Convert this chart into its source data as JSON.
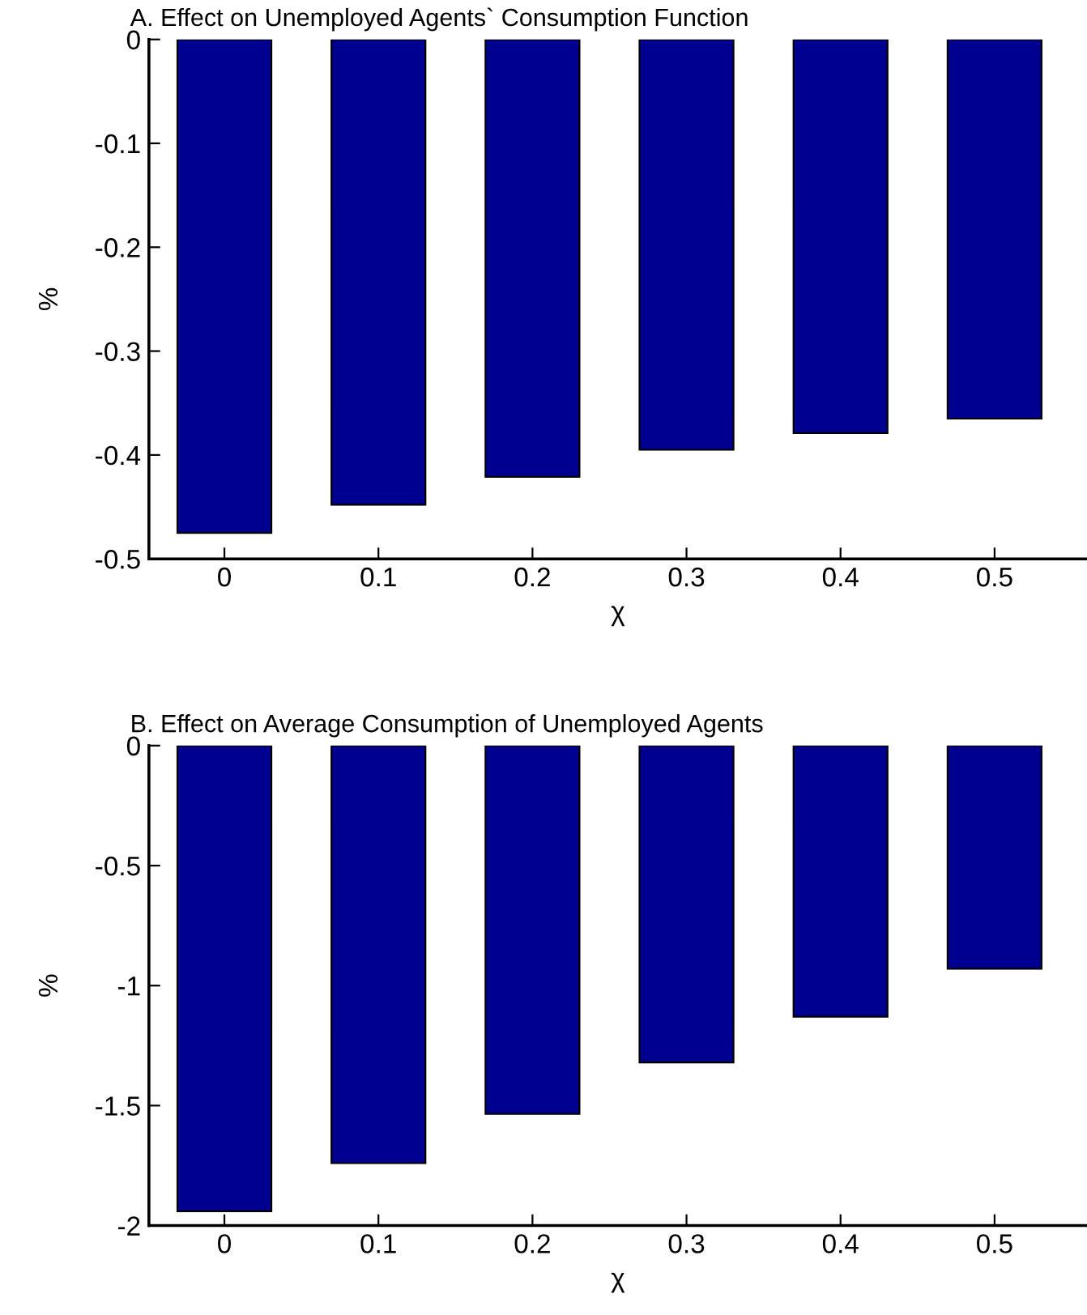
{
  "chart_data": [
    {
      "type": "bar",
      "title": "A. Effect on Unemployed Agents` Consumption Function",
      "xlabel": "χ",
      "ylabel": "%",
      "categories": [
        "0",
        "0.1",
        "0.2",
        "0.3",
        "0.4",
        "0.5"
      ],
      "values": [
        -0.475,
        -0.448,
        -0.421,
        -0.395,
        -0.379,
        -0.365
      ],
      "color": "#000090",
      "ylim": [
        -0.5,
        0
      ],
      "yticks": [
        -0.5,
        -0.4,
        -0.3,
        -0.2,
        -0.1,
        0
      ],
      "grid": false,
      "legend": false
    },
    {
      "type": "bar",
      "title": "B. Effect on Average Consumption of Unemployed Agents",
      "xlabel": "χ",
      "ylabel": "%",
      "categories": [
        "0",
        "0.1",
        "0.2",
        "0.3",
        "0.4",
        "0.5"
      ],
      "values": [
        -1.94,
        -1.74,
        -1.535,
        -1.32,
        -1.13,
        -0.93
      ],
      "color": "#000090",
      "ylim": [
        -2,
        0
      ],
      "yticks": [
        -2,
        -1.5,
        -1,
        -0.5,
        0
      ],
      "grid": false,
      "legend": false
    }
  ]
}
